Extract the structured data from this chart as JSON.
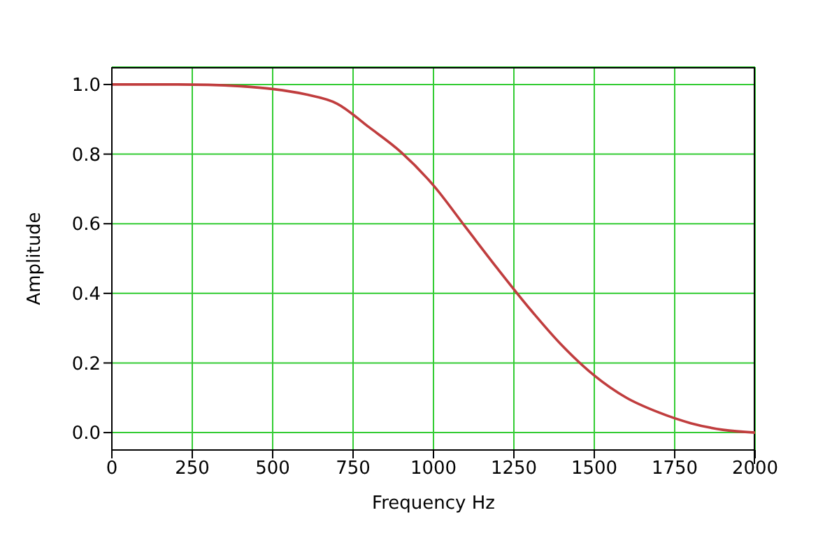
{
  "chart_data": {
    "type": "line",
    "xlabel": "Frequency Hz",
    "ylabel": "Amplitude",
    "x": [
      0,
      100,
      200,
      300,
      400,
      500,
      600,
      700,
      800,
      900,
      1000,
      1100,
      1200,
      1300,
      1400,
      1500,
      1600,
      1700,
      1800,
      1900,
      2000
    ],
    "series": [
      {
        "color": "#c03d3e",
        "values": [
          1,
          1,
          1,
          0.999,
          0.995,
          0.987,
          0.972,
          0.945,
          0.877,
          0.805,
          0.71,
          0.59,
          0.47,
          0.355,
          0.25,
          0.164,
          0.1,
          0.058,
          0.027,
          0.008,
          0
        ]
      }
    ],
    "xlim": [
      0,
      2000
    ],
    "xticks": [
      0,
      250,
      500,
      750,
      1000,
      1250,
      1500,
      1750,
      2000
    ],
    "ylim": [
      -0.05,
      1.05
    ],
    "yticks": [
      {
        "value": 0,
        "label": "0.0"
      },
      {
        "value": 0.2,
        "label": "0.2"
      },
      {
        "value": 0.4,
        "label": "0.4"
      },
      {
        "value": 0.6,
        "label": "0.6"
      },
      {
        "value": 0.8,
        "label": "0.8"
      },
      {
        "value": 1,
        "label": "1.0"
      }
    ],
    "grid": true,
    "marker": "none",
    "line_style": "solid",
    "legend": false
  }
}
